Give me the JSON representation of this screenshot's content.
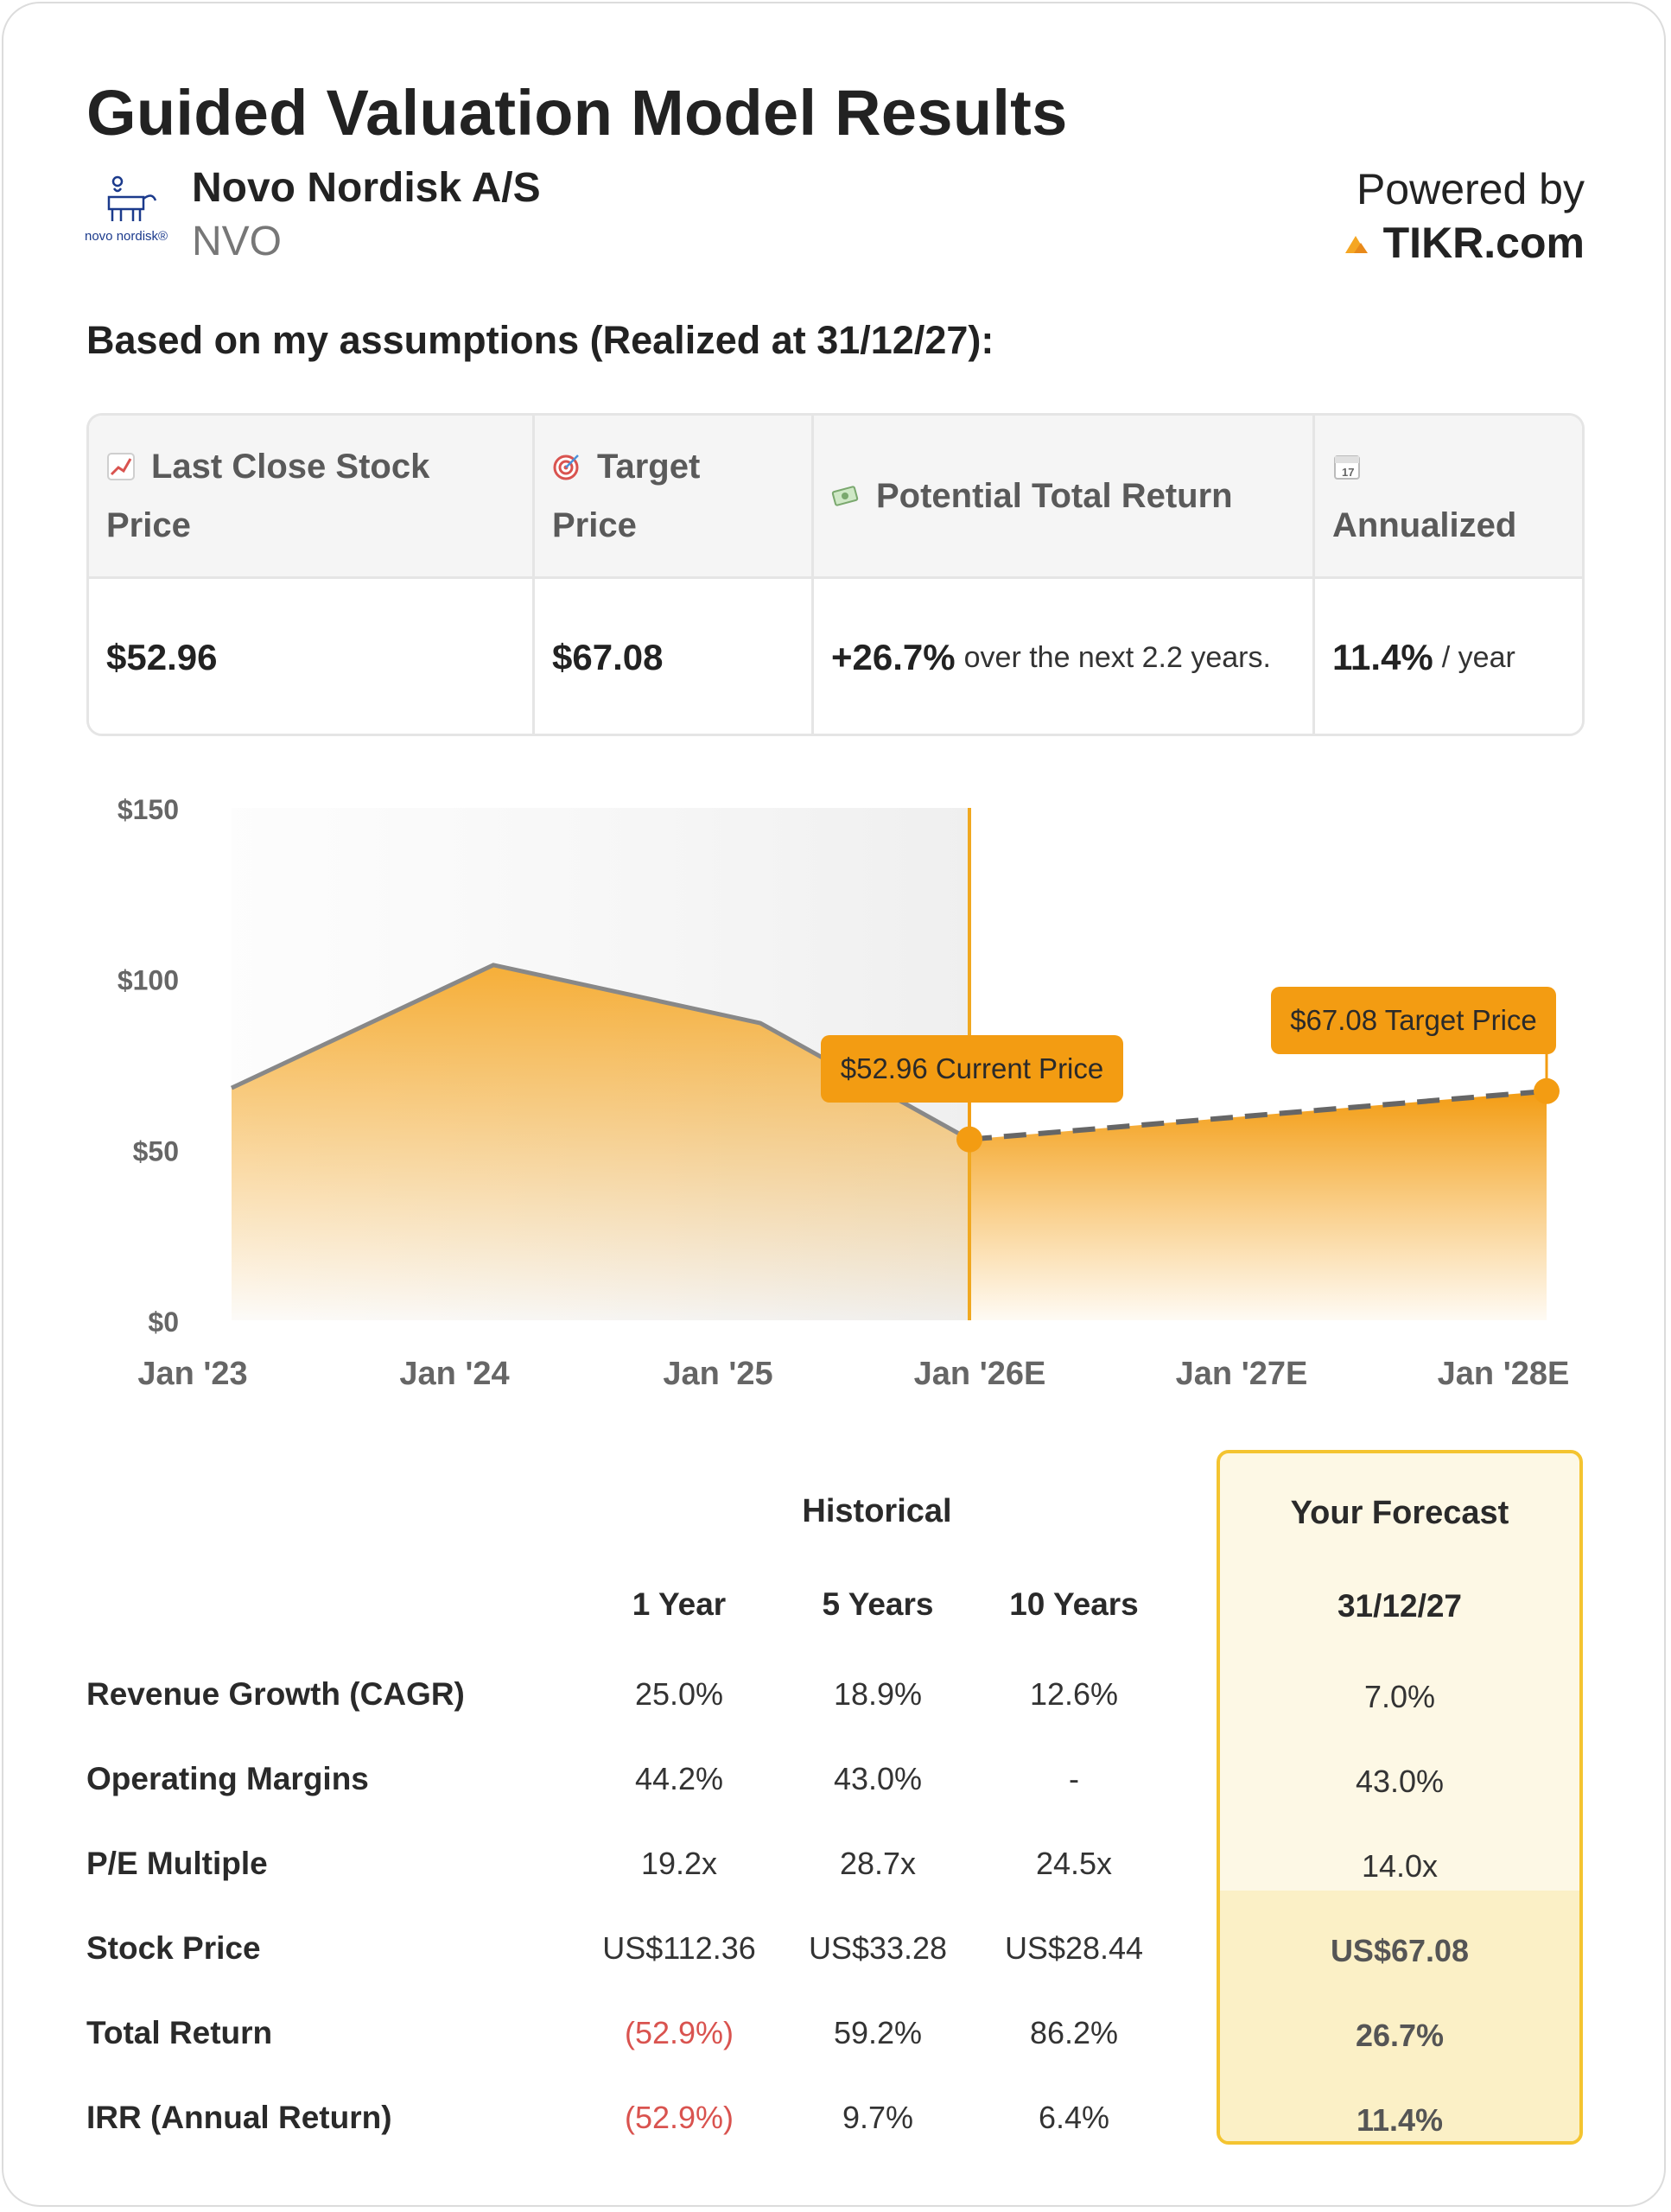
{
  "title": "Guided Valuation Model Results",
  "company": {
    "name": "Novo Nordisk A/S",
    "ticker": "NVO",
    "logo_text": "novo nordisk®"
  },
  "powered": {
    "label": "Powered by",
    "brand": "TIKR.com"
  },
  "assumptions_heading": "Based on my assumptions (Realized at 31/12/27):",
  "summary": {
    "headers": [
      {
        "icon": "chart-up-icon",
        "line1": "Last Close Stock",
        "line2": "Price"
      },
      {
        "icon": "target-icon",
        "line1": "Target",
        "line2": "Price"
      },
      {
        "icon": "money-icon",
        "line1": "Potential Total Return",
        "line2": ""
      },
      {
        "icon": "calendar-icon",
        "line1": "",
        "line2": "Annualized"
      }
    ],
    "last_close": "$52.96",
    "target": "$67.08",
    "total_return": "+26.7%",
    "total_return_note": "over the next 2.2 years.",
    "annualized": "11.4%",
    "annualized_note": "/ year"
  },
  "chart_data": {
    "type": "area",
    "y_ticks": [
      "$150",
      "$100",
      "$50",
      "$0"
    ],
    "ylim": [
      0,
      150
    ],
    "x_ticks": [
      "Jan '23",
      "Jan '24",
      "Jan '25",
      "Jan '26E",
      "Jan '27E",
      "Jan '28E"
    ],
    "historical": [
      {
        "x": "Jan '23",
        "y": 68
      },
      {
        "x": "Jan '24",
        "y": 104
      },
      {
        "x": "Jan '25",
        "y": 87
      },
      {
        "x": "Jan '26E",
        "y": 52.96
      }
    ],
    "forecast": [
      {
        "x": "Jan '26E",
        "y": 52.96
      },
      {
        "x": "Jan '28E",
        "y": 67.08
      }
    ],
    "annotations": [
      {
        "label": "$52.96 Current Price",
        "y": 52.96
      },
      {
        "label": "$67.08 Target Price",
        "y": 67.08
      }
    ],
    "colors": {
      "fill": "#f5a623",
      "line": "#888888",
      "marker": "#f39c12",
      "divider": "#f0a820"
    }
  },
  "table": {
    "historical_label": "Historical",
    "forecast_label": "Your Forecast",
    "columns": [
      "1 Year",
      "5 Years",
      "10 Years",
      "31/12/27"
    ],
    "rows": [
      {
        "label": "Revenue Growth (CAGR)",
        "values": [
          "25.0%",
          "18.9%",
          "12.6%",
          "7.0%"
        ]
      },
      {
        "label": "Operating Margins",
        "values": [
          "44.2%",
          "43.0%",
          "-",
          "43.0%"
        ]
      },
      {
        "label": "P/E Multiple",
        "values": [
          "19.2x",
          "28.7x",
          "24.5x",
          "14.0x"
        ]
      },
      {
        "label": "Stock Price",
        "values": [
          "US$112.36",
          "US$33.28",
          "US$28.44",
          "US$67.08"
        ]
      },
      {
        "label": "Total Return",
        "values": [
          "(52.9%)",
          "59.2%",
          "86.2%",
          "26.7%"
        ]
      },
      {
        "label": "IRR (Annual Return)",
        "values": [
          "(52.9%)",
          "9.7%",
          "6.4%",
          "11.4%"
        ]
      }
    ]
  }
}
